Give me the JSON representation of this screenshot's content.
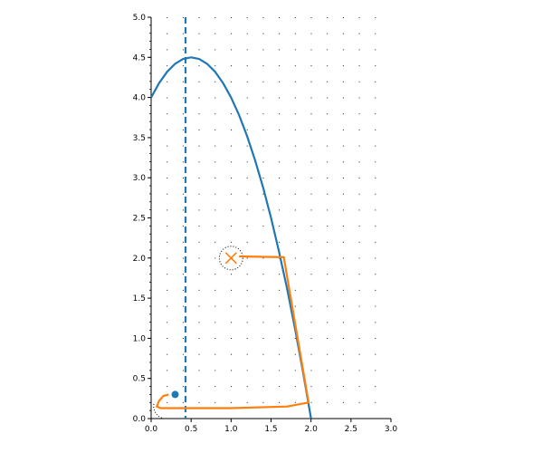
{
  "chart_data": {
    "type": "line",
    "xlim": [
      0,
      3
    ],
    "ylim": [
      0,
      5
    ],
    "xticks": [
      {
        "value": 0,
        "label": "0.0"
      },
      {
        "value": 0.5,
        "label": "0.5"
      },
      {
        "value": 1,
        "label": "1.0"
      },
      {
        "value": 1.5,
        "label": "1.5"
      },
      {
        "value": 2,
        "label": "2.0"
      },
      {
        "value": 2.5,
        "label": "2.5"
      },
      {
        "value": 3,
        "label": "3.0"
      }
    ],
    "yticks": [
      {
        "value": 0,
        "label": "0.0"
      },
      {
        "value": 0.5,
        "label": "0.5"
      },
      {
        "value": 1,
        "label": "1.0"
      },
      {
        "value": 1.5,
        "label": "1.5"
      },
      {
        "value": 2,
        "label": "2.0"
      },
      {
        "value": 2.5,
        "label": "2.5"
      },
      {
        "value": 3,
        "label": "3.0"
      },
      {
        "value": 3.5,
        "label": "3.5"
      },
      {
        "value": 4,
        "label": "4.0"
      },
      {
        "value": 4.5,
        "label": "4.5"
      },
      {
        "value": 5,
        "label": "5.0"
      }
    ],
    "grid": true,
    "series": [
      {
        "color": "#1f77b4",
        "x": [
          0,
          0.1,
          0.2,
          0.3,
          0.4,
          0.5,
          0.6,
          0.7,
          0.8,
          0.9,
          1.0,
          1.1,
          1.2,
          1.3,
          1.4,
          1.5,
          1.6,
          1.7,
          1.8,
          1.9,
          2.0
        ],
        "values": [
          4,
          4.18,
          4.32,
          4.42,
          4.48,
          4.5,
          4.48,
          4.42,
          4.32,
          4.18,
          4,
          3.78,
          3.52,
          3.22,
          2.88,
          2.5,
          2.08,
          1.62,
          1.12,
          0.58,
          0
        ]
      },
      {
        "color": "#ff7f0e",
        "x": [
          0.22,
          0.15,
          0.1,
          0.07,
          0.12,
          1.0,
          1.7,
          1.97,
          1.66,
          1.1
        ],
        "values": [
          0.3,
          0.28,
          0.22,
          0.15,
          0.13,
          0.13,
          0.15,
          0.2,
          2.01,
          2.02
        ]
      }
    ],
    "vlines": [
      {
        "x": 0.43,
        "color": "#1f77b4",
        "style": "dashed"
      }
    ],
    "markers": [
      {
        "x": 1,
        "y": 2,
        "color": "#ff7f0e",
        "shape": "x"
      },
      {
        "x": 0.3,
        "y": 0.3,
        "color": "#1f77b4",
        "shape": "circle"
      }
    ]
  }
}
